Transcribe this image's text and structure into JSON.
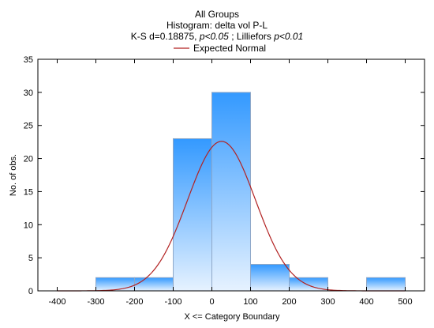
{
  "chart_data": {
    "type": "bar",
    "title_lines": [
      "All Groups",
      "Histogram: delta vol P-L"
    ],
    "stats_line": {
      "ks_prefix": "K-S d=0.18875, ",
      "ks_p": "p<0.05",
      "sep": " ; Lilliefors ",
      "lill_p": "p<0.01"
    },
    "xlabel": "X <= Category Boundary",
    "ylabel": "No. of obs.",
    "xlim": [
      -450,
      550
    ],
    "ylim": [
      0,
      35
    ],
    "x_ticks": [
      -400,
      -300,
      -200,
      -100,
      0,
      100,
      200,
      300,
      400,
      500
    ],
    "y_ticks": [
      0,
      5,
      10,
      15,
      20,
      25,
      30,
      35
    ],
    "bins": [
      {
        "from": -300,
        "to": -200,
        "count": 2
      },
      {
        "from": -200,
        "to": -100,
        "count": 2
      },
      {
        "from": -100,
        "to": 0,
        "count": 23
      },
      {
        "from": 0,
        "to": 100,
        "count": 30
      },
      {
        "from": 100,
        "to": 200,
        "count": 4
      },
      {
        "from": 200,
        "to": 300,
        "count": 2
      },
      {
        "from": 300,
        "to": 400,
        "count": 0
      },
      {
        "from": 400,
        "to": 500,
        "count": 2
      }
    ],
    "normal_curve": {
      "name": "Expected Normal",
      "mean": 25,
      "sd": 88,
      "peak": 22.6,
      "range": [
        -400,
        500
      ]
    },
    "colors": {
      "bar_top": "#3399ff",
      "bar_bottom": "#e6f2ff",
      "bar_edge": "#8fa8c8",
      "curve": "#b22222"
    },
    "grid": false,
    "legend_position": "top-center"
  }
}
